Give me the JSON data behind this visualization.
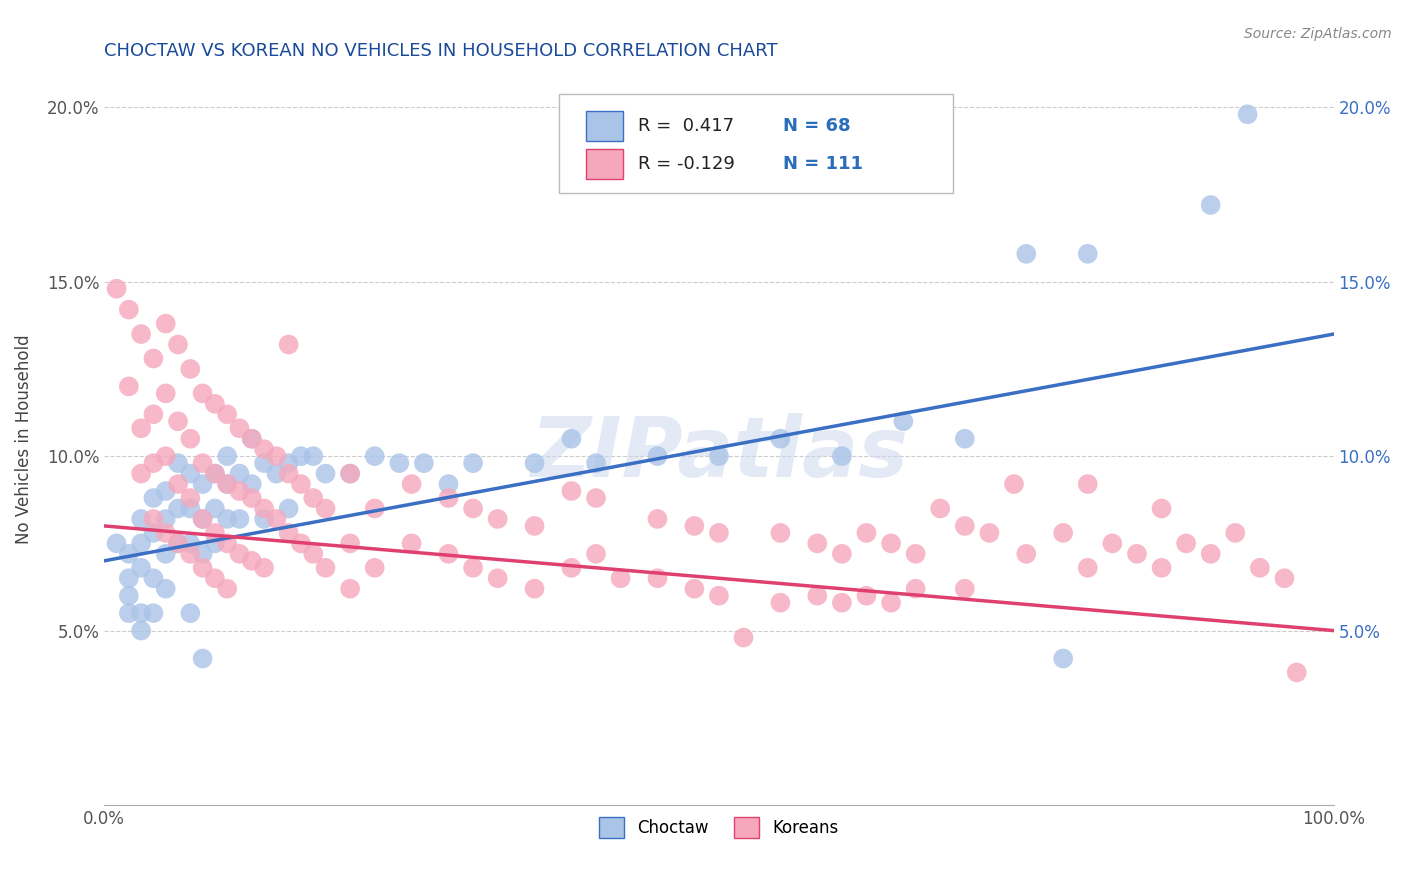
{
  "title": "CHOCTAW VS KOREAN NO VEHICLES IN HOUSEHOLD CORRELATION CHART",
  "source": "Source: ZipAtlas.com",
  "ylabel": "No Vehicles in Household",
  "watermark": "ZIPatlas",
  "choctaw_R": 0.417,
  "choctaw_N": 68,
  "korean_R": -0.129,
  "korean_N": 111,
  "choctaw_color": "#aac4e8",
  "korean_color": "#f5a8bc",
  "choctaw_line_color": "#3a6fc4",
  "korean_line_color": "#e04070",
  "background_color": "#ffffff",
  "grid_color": "#cccccc",
  "xlim": [
    0.0,
    1.0
  ],
  "ylim": [
    0.0,
    0.21
  ],
  "xticks": [
    0.0,
    0.25,
    0.5,
    0.75,
    1.0
  ],
  "yticks": [
    0.05,
    0.1,
    0.15,
    0.2
  ],
  "xtick_labels": [
    "0.0%",
    "",
    "",
    "",
    "100.0%"
  ],
  "ytick_labels": [
    "5.0%",
    "10.0%",
    "15.0%",
    "20.0%"
  ],
  "title_color": "#1a4a99",
  "legend_text_color": "#333333",
  "legend_n_color": "#2a6ebb",
  "choctaw_scatter": [
    [
      0.01,
      0.075
    ],
    [
      0.02,
      0.072
    ],
    [
      0.02,
      0.065
    ],
    [
      0.02,
      0.06
    ],
    [
      0.02,
      0.055
    ],
    [
      0.03,
      0.082
    ],
    [
      0.03,
      0.075
    ],
    [
      0.03,
      0.068
    ],
    [
      0.03,
      0.055
    ],
    [
      0.03,
      0.05
    ],
    [
      0.04,
      0.088
    ],
    [
      0.04,
      0.078
    ],
    [
      0.04,
      0.065
    ],
    [
      0.04,
      0.055
    ],
    [
      0.05,
      0.09
    ],
    [
      0.05,
      0.082
    ],
    [
      0.05,
      0.072
    ],
    [
      0.05,
      0.062
    ],
    [
      0.06,
      0.098
    ],
    [
      0.06,
      0.085
    ],
    [
      0.06,
      0.075
    ],
    [
      0.07,
      0.095
    ],
    [
      0.07,
      0.085
    ],
    [
      0.07,
      0.075
    ],
    [
      0.07,
      0.055
    ],
    [
      0.08,
      0.092
    ],
    [
      0.08,
      0.082
    ],
    [
      0.08,
      0.072
    ],
    [
      0.08,
      0.042
    ],
    [
      0.09,
      0.095
    ],
    [
      0.09,
      0.085
    ],
    [
      0.09,
      0.075
    ],
    [
      0.1,
      0.1
    ],
    [
      0.1,
      0.092
    ],
    [
      0.1,
      0.082
    ],
    [
      0.11,
      0.095
    ],
    [
      0.11,
      0.082
    ],
    [
      0.12,
      0.105
    ],
    [
      0.12,
      0.092
    ],
    [
      0.13,
      0.098
    ],
    [
      0.13,
      0.082
    ],
    [
      0.14,
      0.095
    ],
    [
      0.15,
      0.098
    ],
    [
      0.15,
      0.085
    ],
    [
      0.16,
      0.1
    ],
    [
      0.17,
      0.1
    ],
    [
      0.18,
      0.095
    ],
    [
      0.2,
      0.095
    ],
    [
      0.22,
      0.1
    ],
    [
      0.24,
      0.098
    ],
    [
      0.26,
      0.098
    ],
    [
      0.28,
      0.092
    ],
    [
      0.3,
      0.098
    ],
    [
      0.35,
      0.098
    ],
    [
      0.38,
      0.105
    ],
    [
      0.4,
      0.098
    ],
    [
      0.45,
      0.1
    ],
    [
      0.5,
      0.1
    ],
    [
      0.55,
      0.105
    ],
    [
      0.6,
      0.1
    ],
    [
      0.65,
      0.11
    ],
    [
      0.7,
      0.105
    ],
    [
      0.75,
      0.158
    ],
    [
      0.78,
      0.042
    ],
    [
      0.8,
      0.158
    ],
    [
      0.9,
      0.172
    ],
    [
      0.93,
      0.198
    ]
  ],
  "korean_scatter": [
    [
      0.01,
      0.148
    ],
    [
      0.02,
      0.142
    ],
    [
      0.02,
      0.12
    ],
    [
      0.03,
      0.135
    ],
    [
      0.03,
      0.108
    ],
    [
      0.03,
      0.095
    ],
    [
      0.04,
      0.128
    ],
    [
      0.04,
      0.112
    ],
    [
      0.04,
      0.098
    ],
    [
      0.04,
      0.082
    ],
    [
      0.05,
      0.138
    ],
    [
      0.05,
      0.118
    ],
    [
      0.05,
      0.1
    ],
    [
      0.05,
      0.078
    ],
    [
      0.06,
      0.132
    ],
    [
      0.06,
      0.11
    ],
    [
      0.06,
      0.092
    ],
    [
      0.06,
      0.075
    ],
    [
      0.07,
      0.125
    ],
    [
      0.07,
      0.105
    ],
    [
      0.07,
      0.088
    ],
    [
      0.07,
      0.072
    ],
    [
      0.08,
      0.118
    ],
    [
      0.08,
      0.098
    ],
    [
      0.08,
      0.082
    ],
    [
      0.08,
      0.068
    ],
    [
      0.09,
      0.115
    ],
    [
      0.09,
      0.095
    ],
    [
      0.09,
      0.078
    ],
    [
      0.09,
      0.065
    ],
    [
      0.1,
      0.112
    ],
    [
      0.1,
      0.092
    ],
    [
      0.1,
      0.075
    ],
    [
      0.1,
      0.062
    ],
    [
      0.11,
      0.108
    ],
    [
      0.11,
      0.09
    ],
    [
      0.11,
      0.072
    ],
    [
      0.12,
      0.105
    ],
    [
      0.12,
      0.088
    ],
    [
      0.12,
      0.07
    ],
    [
      0.13,
      0.102
    ],
    [
      0.13,
      0.085
    ],
    [
      0.13,
      0.068
    ],
    [
      0.14,
      0.1
    ],
    [
      0.14,
      0.082
    ],
    [
      0.15,
      0.132
    ],
    [
      0.15,
      0.095
    ],
    [
      0.15,
      0.078
    ],
    [
      0.16,
      0.092
    ],
    [
      0.16,
      0.075
    ],
    [
      0.17,
      0.088
    ],
    [
      0.17,
      0.072
    ],
    [
      0.18,
      0.085
    ],
    [
      0.18,
      0.068
    ],
    [
      0.2,
      0.095
    ],
    [
      0.2,
      0.075
    ],
    [
      0.2,
      0.062
    ],
    [
      0.22,
      0.085
    ],
    [
      0.22,
      0.068
    ],
    [
      0.25,
      0.092
    ],
    [
      0.25,
      0.075
    ],
    [
      0.28,
      0.088
    ],
    [
      0.28,
      0.072
    ],
    [
      0.3,
      0.085
    ],
    [
      0.3,
      0.068
    ],
    [
      0.32,
      0.082
    ],
    [
      0.32,
      0.065
    ],
    [
      0.35,
      0.08
    ],
    [
      0.35,
      0.062
    ],
    [
      0.38,
      0.09
    ],
    [
      0.38,
      0.068
    ],
    [
      0.4,
      0.088
    ],
    [
      0.4,
      0.072
    ],
    [
      0.42,
      0.065
    ],
    [
      0.45,
      0.082
    ],
    [
      0.45,
      0.065
    ],
    [
      0.48,
      0.08
    ],
    [
      0.48,
      0.062
    ],
    [
      0.5,
      0.078
    ],
    [
      0.5,
      0.06
    ],
    [
      0.52,
      0.048
    ],
    [
      0.55,
      0.078
    ],
    [
      0.55,
      0.058
    ],
    [
      0.58,
      0.075
    ],
    [
      0.58,
      0.06
    ],
    [
      0.6,
      0.072
    ],
    [
      0.6,
      0.058
    ],
    [
      0.62,
      0.078
    ],
    [
      0.62,
      0.06
    ],
    [
      0.64,
      0.075
    ],
    [
      0.64,
      0.058
    ],
    [
      0.66,
      0.072
    ],
    [
      0.66,
      0.062
    ],
    [
      0.68,
      0.085
    ],
    [
      0.7,
      0.08
    ],
    [
      0.7,
      0.062
    ],
    [
      0.72,
      0.078
    ],
    [
      0.74,
      0.092
    ],
    [
      0.75,
      0.072
    ],
    [
      0.78,
      0.078
    ],
    [
      0.8,
      0.092
    ],
    [
      0.8,
      0.068
    ],
    [
      0.82,
      0.075
    ],
    [
      0.84,
      0.072
    ],
    [
      0.86,
      0.085
    ],
    [
      0.86,
      0.068
    ],
    [
      0.88,
      0.075
    ],
    [
      0.9,
      0.072
    ],
    [
      0.92,
      0.078
    ],
    [
      0.94,
      0.068
    ],
    [
      0.96,
      0.065
    ],
    [
      0.97,
      0.038
    ]
  ]
}
